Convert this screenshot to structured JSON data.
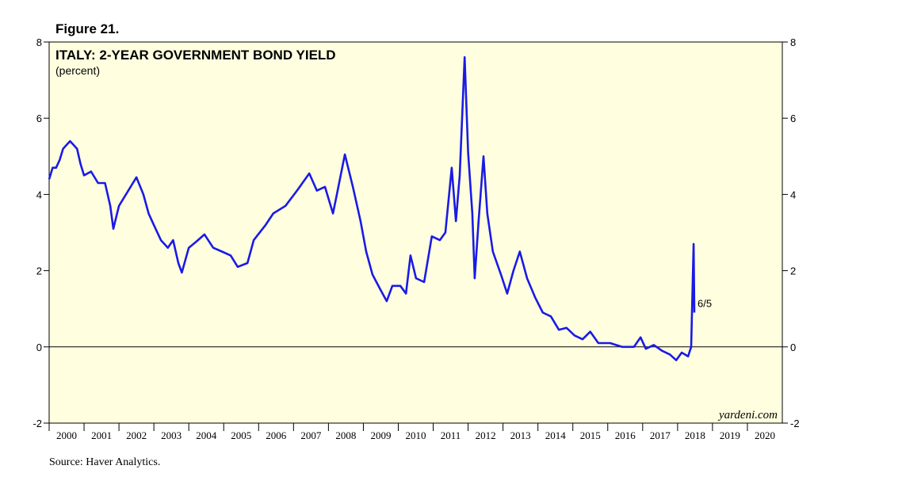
{
  "chart_data": {
    "type": "line",
    "figure_label": "Figure 21.",
    "title": "ITALY: 2-YEAR GOVERNMENT BOND YIELD",
    "subtitle": "(percent)",
    "annotation": "6/5",
    "watermark": "yardeni.com",
    "source": "Source: Haver Analytics.",
    "color": "#1a1ae6",
    "background": "#ffffe0",
    "x": [
      2000.0,
      2000.1,
      2000.2,
      2000.3,
      2000.4,
      2000.5,
      2000.6,
      2000.7,
      2000.8,
      2000.9,
      2001.0,
      2001.2,
      2001.4,
      2001.6,
      2001.75,
      2001.84,
      2002.0,
      2002.2,
      2002.4,
      2002.5,
      2002.7,
      2002.85,
      2003.0,
      2003.2,
      2003.4,
      2003.55,
      2003.7,
      2003.8,
      2004.0,
      2004.2,
      2004.45,
      2004.7,
      2004.95,
      2005.2,
      2005.4,
      2005.68,
      2005.86,
      2006.2,
      2006.42,
      2006.77,
      2007.1,
      2007.45,
      2007.67,
      2007.9,
      2008.13,
      2008.24,
      2008.47,
      2008.7,
      2008.92,
      2009.08,
      2009.26,
      2009.49,
      2009.67,
      2009.83,
      2010.06,
      2010.22,
      2010.35,
      2010.51,
      2010.74,
      2010.96,
      2011.19,
      2011.35,
      2011.53,
      2011.65,
      2011.76,
      2011.9,
      2012.0,
      2012.12,
      2012.19,
      2012.3,
      2012.44,
      2012.55,
      2012.71,
      2012.94,
      2013.12,
      2013.3,
      2013.48,
      2013.69,
      2013.92,
      2014.14,
      2014.37,
      2014.6,
      2014.82,
      2015.05,
      2015.28,
      2015.5,
      2015.73,
      2016.07,
      2016.41,
      2016.75,
      2016.94,
      2017.09,
      2017.32,
      2017.55,
      2017.78,
      2017.96,
      2018.12,
      2018.3,
      2018.39,
      2018.46,
      2018.48
    ],
    "values": [
      4.4,
      4.7,
      4.7,
      4.9,
      5.2,
      5.3,
      5.4,
      5.3,
      5.2,
      4.8,
      4.5,
      4.6,
      4.3,
      4.3,
      3.7,
      3.1,
      3.7,
      4.0,
      4.3,
      4.45,
      4.0,
      3.5,
      3.2,
      2.8,
      2.6,
      2.8,
      2.2,
      1.95,
      2.6,
      2.75,
      2.95,
      2.6,
      2.5,
      2.4,
      2.1,
      2.2,
      2.8,
      3.2,
      3.5,
      3.7,
      4.1,
      4.55,
      4.1,
      4.2,
      3.5,
      4.0,
      5.05,
      4.2,
      3.3,
      2.5,
      1.9,
      1.5,
      1.2,
      1.6,
      1.6,
      1.4,
      2.4,
      1.8,
      1.7,
      2.9,
      2.8,
      3.0,
      4.7,
      3.3,
      4.5,
      7.6,
      5.1,
      3.5,
      1.8,
      3.3,
      5.0,
      3.5,
      2.5,
      1.9,
      1.4,
      2.0,
      2.5,
      1.8,
      1.3,
      0.9,
      0.8,
      0.45,
      0.5,
      0.3,
      0.2,
      0.4,
      0.1,
      0.1,
      0.0,
      0.0,
      0.25,
      -0.05,
      0.05,
      -0.1,
      -0.2,
      -0.35,
      -0.15,
      -0.25,
      0.0,
      2.7,
      0.9
    ],
    "xlim": [
      2000,
      2021
    ],
    "xticks": [
      2000,
      2001,
      2002,
      2003,
      2004,
      2005,
      2006,
      2007,
      2008,
      2009,
      2010,
      2011,
      2012,
      2013,
      2014,
      2015,
      2016,
      2017,
      2018,
      2019,
      2020
    ],
    "ylim": [
      -2,
      8
    ],
    "yticks": [
      -2,
      0,
      2,
      4,
      6,
      8
    ],
    "zero_line": true
  }
}
